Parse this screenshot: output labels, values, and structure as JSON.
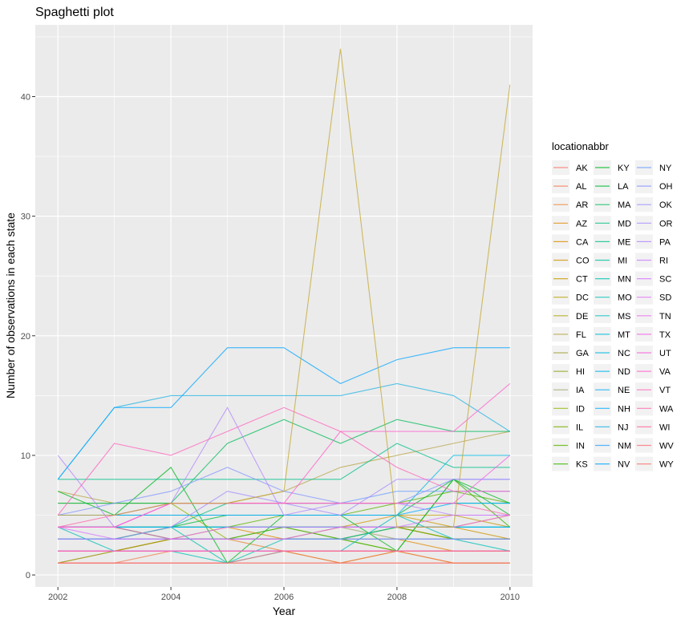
{
  "chart_data": {
    "type": "line",
    "title": "Spaghetti plot",
    "xlabel": "Year",
    "ylabel": "Number of observations in each state",
    "xlim": [
      2001.6,
      2010.4
    ],
    "ylim": [
      -1,
      46
    ],
    "x_ticks": [
      2002,
      2004,
      2006,
      2008,
      2010
    ],
    "y_ticks": [
      0,
      10,
      20,
      30,
      40
    ],
    "grid": true,
    "panel_background": "#ebebeb",
    "legend": {
      "title": "locationabbr",
      "position": "right",
      "columns": 3
    },
    "x": [
      2002,
      2003,
      2004,
      2005,
      2006,
      2007,
      2008,
      2009,
      2010
    ],
    "series": [
      {
        "name": "AK",
        "color": "#F8766D",
        "values": [
          1,
          1,
          1,
          1,
          1,
          1,
          1,
          1,
          1
        ]
      },
      {
        "name": "AL",
        "color": "#F27D52",
        "values": [
          1,
          1,
          2,
          2,
          2,
          1,
          2,
          1,
          1
        ]
      },
      {
        "name": "AR",
        "color": "#EA8331",
        "values": [
          1,
          2,
          3,
          3,
          2,
          1,
          2,
          1,
          1
        ]
      },
      {
        "name": "AZ",
        "color": "#E18A00",
        "values": [
          2,
          2,
          3,
          4,
          3,
          3,
          3,
          2,
          2
        ]
      },
      {
        "name": "CA",
        "color": "#D89000",
        "values": [
          2,
          2,
          3,
          3,
          3,
          3,
          4,
          4,
          5
        ]
      },
      {
        "name": "CO",
        "color": "#CE9500",
        "values": [
          4,
          4,
          4,
          4,
          4,
          4,
          5,
          4,
          3
        ]
      },
      {
        "name": "CT",
        "color": "#C49A00",
        "values": [
          5,
          5,
          5,
          5,
          5,
          5,
          5,
          5,
          4
        ]
      },
      {
        "name": "DC",
        "color": "#B69F00",
        "values": [
          2,
          2,
          2,
          2,
          2,
          2,
          2,
          2,
          2
        ]
      },
      {
        "name": "DE",
        "color": "#A9A400",
        "values": [
          4,
          4,
          4,
          4,
          4,
          4,
          4,
          3,
          3
        ]
      },
      {
        "name": "FL",
        "color": "#B8A548",
        "values": [
          7,
          6,
          6,
          6,
          7,
          9,
          10,
          11,
          12
        ]
      },
      {
        "name": "GA",
        "color": "#A3A43A",
        "values": [
          3,
          3,
          3,
          3,
          4,
          3,
          4,
          3,
          3
        ]
      },
      {
        "name": "HI",
        "color": "#90A51F",
        "values": [
          1,
          2,
          3,
          3,
          3,
          4,
          4,
          3,
          3
        ]
      },
      {
        "name": "IA",
        "color": "#9DA56B",
        "values": [
          4,
          4,
          4,
          4,
          4,
          4,
          3,
          3,
          3
        ]
      },
      {
        "name": "ID",
        "color": "#8FB500",
        "values": [
          6,
          6,
          6,
          3,
          3,
          3,
          2,
          2,
          2
        ]
      },
      {
        "name": "IL",
        "color": "#7BAE00",
        "values": [
          4,
          4,
          3,
          3,
          3,
          3,
          4,
          3,
          3
        ]
      },
      {
        "name": "IN",
        "color": "#5BB300",
        "values": [
          3,
          3,
          4,
          4,
          5,
          5,
          6,
          7,
          6
        ]
      },
      {
        "name": "KS",
        "color": "#39B600",
        "values": [
          4,
          4,
          3,
          3,
          4,
          3,
          2,
          8,
          4
        ]
      },
      {
        "name": "KY",
        "color": "#00B81F",
        "values": [
          7,
          5,
          9,
          1,
          5,
          5,
          2,
          8,
          6
        ]
      },
      {
        "name": "LA",
        "color": "#00BA38",
        "values": [
          3,
          3,
          4,
          5,
          5,
          5,
          5,
          8,
          5
        ]
      },
      {
        "name": "MA",
        "color": "#00BC59",
        "values": [
          6,
          6,
          6,
          11,
          13,
          11,
          13,
          12,
          12
        ]
      },
      {
        "name": "MD",
        "color": "#00BF7D",
        "values": [
          4,
          4,
          4,
          6,
          6,
          6,
          6,
          6,
          6
        ]
      },
      {
        "name": "ME",
        "color": "#00C08B",
        "values": [
          8,
          8,
          8,
          8,
          8,
          8,
          11,
          9,
          9
        ]
      },
      {
        "name": "MI",
        "color": "#00C19F",
        "values": [
          3,
          3,
          4,
          4,
          4,
          4,
          4,
          4,
          4
        ]
      },
      {
        "name": "MN",
        "color": "#00C1AF",
        "values": [
          4,
          4,
          4,
          1,
          3,
          3,
          4,
          4,
          4
        ]
      },
      {
        "name": "MO",
        "color": "#00C0B8",
        "values": [
          4,
          2,
          2,
          1,
          2,
          2,
          5,
          3,
          2
        ]
      },
      {
        "name": "MS",
        "color": "#00BFC4",
        "values": [
          2,
          2,
          2,
          2,
          2,
          2,
          2,
          2,
          2
        ]
      },
      {
        "name": "MT",
        "color": "#00BCD8",
        "values": [
          4,
          4,
          4,
          4,
          4,
          4,
          4,
          4,
          4
        ]
      },
      {
        "name": "NC",
        "color": "#00B9E3",
        "values": [
          5,
          5,
          5,
          5,
          5,
          5,
          5,
          10,
          10
        ]
      },
      {
        "name": "ND",
        "color": "#00B4EF",
        "values": [
          4,
          4,
          4,
          4,
          4,
          4,
          4,
          4,
          4
        ]
      },
      {
        "name": "NE",
        "color": "#00ADFA",
        "values": [
          5,
          5,
          5,
          5,
          5,
          5,
          5,
          6,
          6
        ]
      },
      {
        "name": "NH",
        "color": "#00A9FF",
        "values": [
          2,
          2,
          2,
          2,
          2,
          2,
          2,
          2,
          2
        ]
      },
      {
        "name": "NJ",
        "color": "#22B3E3",
        "values": [
          8,
          14,
          15,
          15,
          15,
          15,
          16,
          15,
          12
        ]
      },
      {
        "name": "NM",
        "color": "#35A2FF",
        "values": [
          3,
          3,
          3,
          3,
          3,
          3,
          3,
          3,
          3
        ]
      },
      {
        "name": "NV",
        "color": "#00A5FF",
        "values": [
          8,
          14,
          14,
          19,
          19,
          16,
          18,
          19,
          19
        ]
      },
      {
        "name": "NY",
        "color": "#6E9CFF",
        "values": [
          5,
          5,
          6,
          6,
          6,
          6,
          7,
          7,
          7
        ]
      },
      {
        "name": "OH",
        "color": "#8395FF",
        "values": [
          5,
          6,
          7,
          9,
          7,
          6,
          6,
          8,
          8
        ]
      },
      {
        "name": "OK",
        "color": "#9590FF",
        "values": [
          3,
          3,
          3,
          3,
          3,
          3,
          3,
          3,
          3
        ]
      },
      {
        "name": "OR",
        "color": "#A58AFF",
        "values": [
          3,
          3,
          4,
          7,
          6,
          5,
          8,
          8,
          8
        ]
      },
      {
        "name": "PA",
        "color": "#B385FF",
        "values": [
          10,
          4,
          6,
          14,
          5,
          6,
          6,
          5,
          5
        ]
      },
      {
        "name": "RI",
        "color": "#C77CFF",
        "values": [
          2,
          2,
          2,
          2,
          2,
          2,
          2,
          2,
          2
        ]
      },
      {
        "name": "SC",
        "color": "#D575FE",
        "values": [
          4,
          3,
          3,
          4,
          4,
          4,
          4,
          5,
          5
        ]
      },
      {
        "name": "SD",
        "color": "#E26EF7",
        "values": [
          2,
          2,
          2,
          2,
          2,
          2,
          2,
          2,
          2
        ]
      },
      {
        "name": "TN",
        "color": "#EB68EF",
        "values": [
          4,
          4,
          3,
          3,
          3,
          4,
          4,
          4,
          5
        ]
      },
      {
        "name": "TX",
        "color": "#F365E6",
        "values": [
          4,
          4,
          6,
          6,
          6,
          6,
          6,
          6,
          10
        ]
      },
      {
        "name": "UT",
        "color": "#FA62DB",
        "values": [
          2,
          2,
          2,
          2,
          2,
          2,
          2,
          2,
          2
        ]
      },
      {
        "name": "VA",
        "color": "#FF61CC",
        "values": [
          4,
          4,
          6,
          6,
          6,
          12,
          12,
          12,
          16
        ]
      },
      {
        "name": "VT",
        "color": "#FF62BC",
        "values": [
          5,
          11,
          10,
          12,
          14,
          12,
          9,
          7,
          7
        ]
      },
      {
        "name": "WA",
        "color": "#FF65AE",
        "values": [
          4,
          5,
          6,
          6,
          6,
          6,
          6,
          6,
          5
        ]
      },
      {
        "name": "WI",
        "color": "#FF689F",
        "values": [
          2,
          2,
          2,
          2,
          2,
          2,
          2,
          2,
          2
        ]
      },
      {
        "name": "WV",
        "color": "#FC717F",
        "values": [
          1,
          1,
          1,
          1,
          2,
          2,
          2,
          2,
          2
        ]
      },
      {
        "name": "WY",
        "color": "#F8766D",
        "values": [
          1,
          1,
          1,
          1,
          1,
          1,
          1,
          1,
          1
        ]
      },
      {
        "name": "",
        "color": "#C2A72F",
        "values": [
          5,
          5,
          6,
          6,
          7,
          44,
          4,
          4,
          41
        ]
      }
    ]
  }
}
